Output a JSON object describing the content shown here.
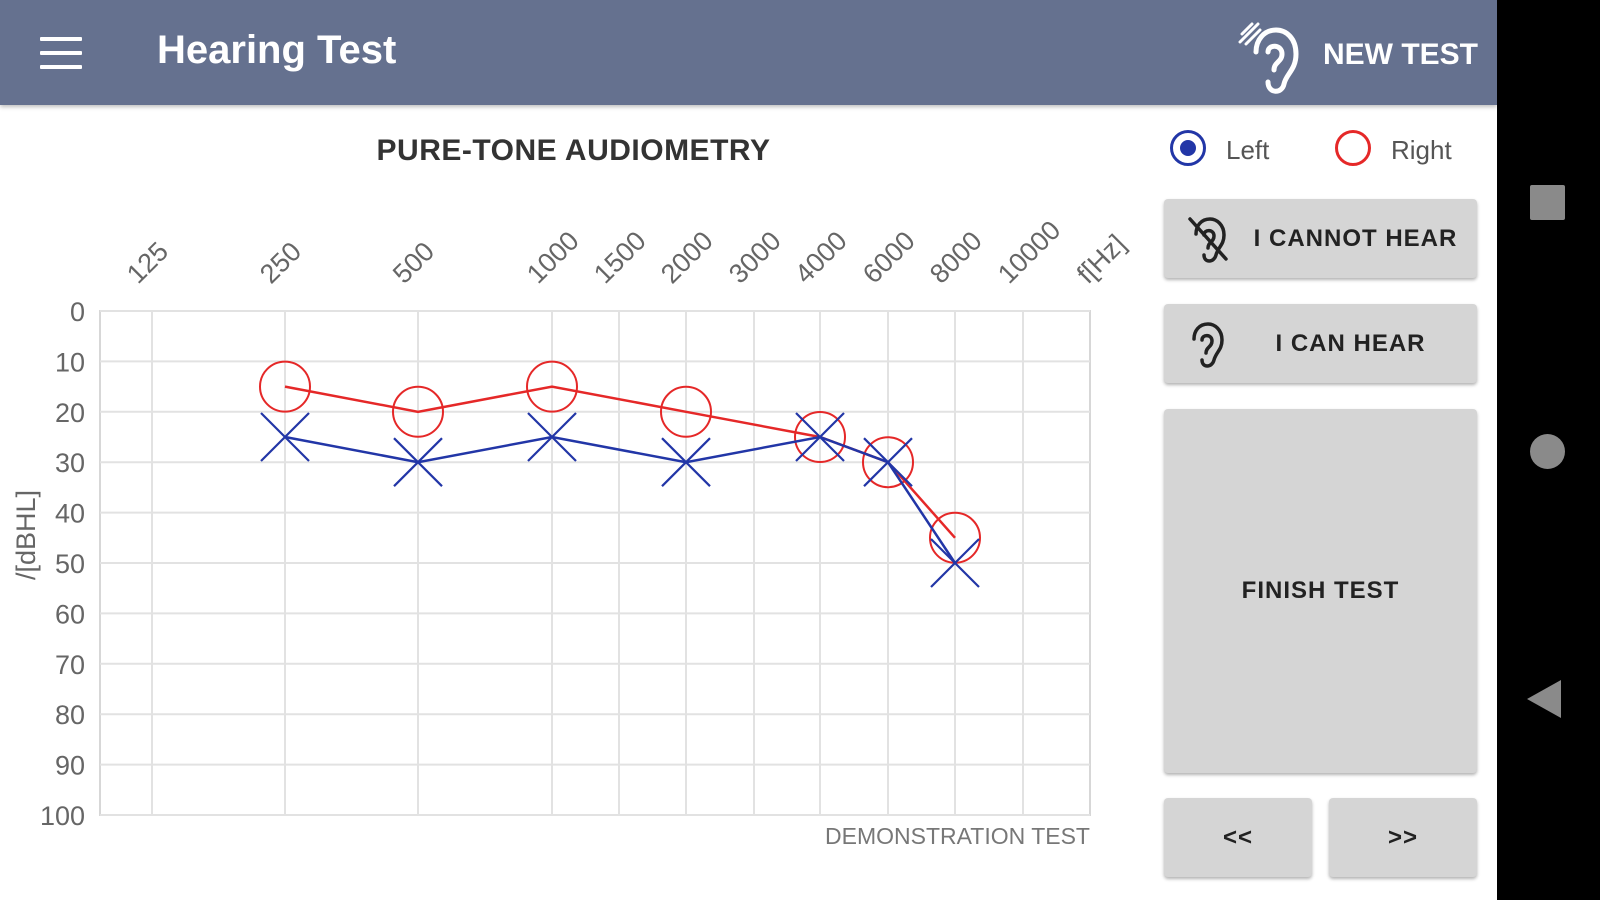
{
  "appbar": {
    "title": "Hearing Test",
    "menu_icon": "hamburger-menu-icon",
    "new_test_icon": "ear-sound-icon",
    "new_test_label": "NEW TEST",
    "background": "#65718f"
  },
  "selector": {
    "left": {
      "label": "Left",
      "selected": true,
      "color": "#2236a7"
    },
    "right": {
      "label": "Right",
      "selected": false,
      "color": "#e52828"
    }
  },
  "buttons": {
    "cannot_hear": {
      "label": "I CANNOT HEAR",
      "icon": "ear-crossed-icon"
    },
    "can_hear": {
      "label": "I CAN HEAR",
      "icon": "ear-icon"
    },
    "finish": {
      "label": "FINISH TEST"
    },
    "prev": {
      "label": "<<"
    },
    "next": {
      "label": ">>"
    }
  },
  "chart_data": {
    "type": "line",
    "title": "PURE-TONE AUDIOMETRY",
    "xlabel": "f[Hz]",
    "ylabel": "/[dBHL]",
    "x_ticks": [
      "125",
      "250",
      "500",
      "1000",
      "1500",
      "2000",
      "3000",
      "4000",
      "6000",
      "8000",
      "10000"
    ],
    "y_ticks": [
      "0",
      "10",
      "20",
      "30",
      "40",
      "50",
      "60",
      "70",
      "80",
      "90",
      "100"
    ],
    "ylim": [
      0,
      100
    ],
    "y_inverted": true,
    "grid": true,
    "annotation": "DEMONSTRATION TEST",
    "series": [
      {
        "ear": "right",
        "marker": "circle",
        "color": "#e52828",
        "x": [
          "250",
          "500",
          "1000",
          "2000",
          "4000",
          "6000",
          "8000"
        ],
        "values": [
          15,
          20,
          15,
          20,
          25,
          30,
          45
        ]
      },
      {
        "ear": "left",
        "marker": "cross",
        "color": "#2236a7",
        "x": [
          "250",
          "500",
          "1000",
          "2000",
          "4000",
          "6000",
          "8000"
        ],
        "values": [
          25,
          30,
          25,
          30,
          25,
          30,
          50
        ]
      }
    ]
  },
  "navbar": {
    "recents_icon": "square-recents-icon",
    "home_icon": "circle-home-icon",
    "back_icon": "triangle-back-icon"
  }
}
